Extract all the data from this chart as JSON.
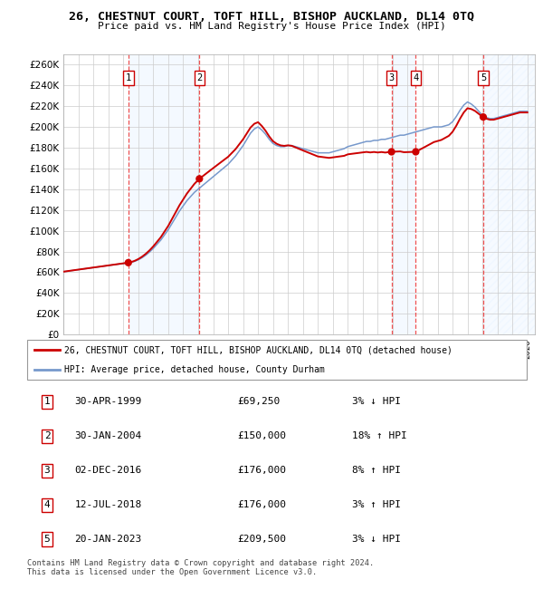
{
  "title": "26, CHESTNUT COURT, TOFT HILL, BISHOP AUCKLAND, DL14 0TQ",
  "subtitle": "Price paid vs. HM Land Registry's House Price Index (HPI)",
  "xlim_start": 1995.0,
  "xlim_end": 2026.5,
  "ylim_min": 0,
  "ylim_max": 270000,
  "ytick_step": 20000,
  "sale_dates_num": [
    1999.33,
    2004.08,
    2016.92,
    2018.54,
    2023.05
  ],
  "sale_prices": [
    69250,
    150000,
    176000,
    176000,
    209500
  ],
  "sale_labels": [
    "1",
    "2",
    "3",
    "4",
    "5"
  ],
  "legend_line1": "26, CHESTNUT COURT, TOFT HILL, BISHOP AUCKLAND, DL14 0TQ (detached house)",
  "legend_line2": "HPI: Average price, detached house, County Durham",
  "table_data": [
    [
      "1",
      "30-APR-1999",
      "£69,250",
      "3% ↓ HPI"
    ],
    [
      "2",
      "30-JAN-2004",
      "£150,000",
      "18% ↑ HPI"
    ],
    [
      "3",
      "02-DEC-2016",
      "£176,000",
      "8% ↑ HPI"
    ],
    [
      "4",
      "12-JUL-2018",
      "£176,000",
      "3% ↑ HPI"
    ],
    [
      "5",
      "20-JAN-2023",
      "£209,500",
      "3% ↓ HPI"
    ]
  ],
  "footnote1": "Contains HM Land Registry data © Crown copyright and database right 2024.",
  "footnote2": "This data is licensed under the Open Government Licence v3.0.",
  "line_color": "#cc0000",
  "hpi_color": "#7799cc",
  "sale_marker_color": "#cc0000",
  "background_color": "#ffffff",
  "grid_color": "#cccccc",
  "shade_color": "#ddeeff",
  "hpi_years": [
    1995.0,
    1995.25,
    1995.5,
    1995.75,
    1996.0,
    1996.25,
    1996.5,
    1996.75,
    1997.0,
    1997.25,
    1997.5,
    1997.75,
    1998.0,
    1998.25,
    1998.5,
    1998.75,
    1999.0,
    1999.25,
    1999.5,
    1999.75,
    2000.0,
    2000.25,
    2000.5,
    2000.75,
    2001.0,
    2001.25,
    2001.5,
    2001.75,
    2002.0,
    2002.25,
    2002.5,
    2002.75,
    2003.0,
    2003.25,
    2003.5,
    2003.75,
    2004.0,
    2004.25,
    2004.5,
    2004.75,
    2005.0,
    2005.25,
    2005.5,
    2005.75,
    2006.0,
    2006.25,
    2006.5,
    2006.75,
    2007.0,
    2007.25,
    2007.5,
    2007.75,
    2008.0,
    2008.25,
    2008.5,
    2008.75,
    2009.0,
    2009.25,
    2009.5,
    2009.75,
    2010.0,
    2010.25,
    2010.5,
    2010.75,
    2011.0,
    2011.25,
    2011.5,
    2011.75,
    2012.0,
    2012.25,
    2012.5,
    2012.75,
    2013.0,
    2013.25,
    2013.5,
    2013.75,
    2014.0,
    2014.25,
    2014.5,
    2014.75,
    2015.0,
    2015.25,
    2015.5,
    2015.75,
    2016.0,
    2016.25,
    2016.5,
    2016.75,
    2017.0,
    2017.25,
    2017.5,
    2017.75,
    2018.0,
    2018.25,
    2018.5,
    2018.75,
    2019.0,
    2019.25,
    2019.5,
    2019.75,
    2020.0,
    2020.25,
    2020.5,
    2020.75,
    2021.0,
    2021.25,
    2021.5,
    2021.75,
    2022.0,
    2022.25,
    2022.5,
    2022.75,
    2023.0,
    2023.25,
    2023.5,
    2023.75,
    2024.0,
    2024.25,
    2024.5,
    2024.75,
    2025.0,
    2025.25,
    2025.5,
    2025.75,
    2026.0
  ],
  "hpi_values": [
    60500,
    61000,
    61500,
    62000,
    62500,
    63000,
    63500,
    64000,
    64500,
    65000,
    65500,
    66000,
    66500,
    67000,
    67500,
    68000,
    68500,
    69000,
    69500,
    70500,
    72000,
    74000,
    76500,
    79500,
    83000,
    87000,
    91000,
    96000,
    101000,
    107000,
    113000,
    119000,
    124000,
    129000,
    133000,
    137000,
    140000,
    143000,
    146000,
    149000,
    152000,
    155000,
    158000,
    161000,
    164000,
    168000,
    172000,
    177000,
    182000,
    188000,
    194000,
    198000,
    200000,
    197000,
    193000,
    188000,
    184000,
    182000,
    181000,
    181000,
    182000,
    182000,
    181000,
    180000,
    179000,
    178000,
    177000,
    176000,
    175000,
    175000,
    175000,
    175000,
    176000,
    177000,
    178000,
    179000,
    181000,
    182000,
    183000,
    184000,
    185000,
    186000,
    186000,
    187000,
    187000,
    188000,
    188000,
    189000,
    190000,
    191000,
    192000,
    192000,
    193000,
    194000,
    195000,
    196000,
    197000,
    198000,
    199000,
    200000,
    200000,
    200000,
    201000,
    202000,
    205000,
    210000,
    216000,
    221000,
    224000,
    222000,
    219000,
    215000,
    211000,
    209000,
    208000,
    208000,
    209000,
    210000,
    211000,
    212000,
    213000,
    214000,
    215000,
    215000,
    215000
  ]
}
